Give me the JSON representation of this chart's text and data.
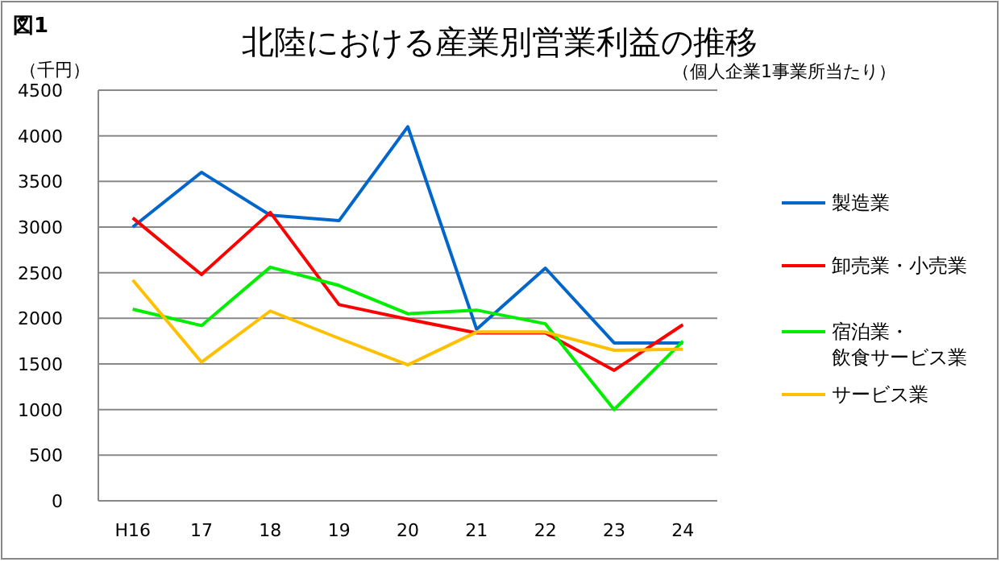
{
  "chart_data": {
    "type": "line",
    "title": "北陸における産業別営業利益の推移",
    "subtitle": "（個人企業1事業所当たり）",
    "ylabel": "（千円）",
    "annotations": [
      "図1"
    ],
    "categories": [
      "H16",
      "17",
      "18",
      "19",
      "20",
      "21",
      "22",
      "23",
      "24"
    ],
    "ylim": [
      0,
      4500
    ],
    "yticks": [
      0,
      500,
      1000,
      1500,
      2000,
      2500,
      3000,
      3500,
      4000,
      4500
    ],
    "grid": "y",
    "legend": "right",
    "marker": "none",
    "line_style": "solid",
    "series": [
      {
        "name": "製造業",
        "color": "#0066cc",
        "values": [
          3000,
          3600,
          3130,
          3070,
          4100,
          1880,
          2550,
          1730,
          1730
        ]
      },
      {
        "name": "卸売業・小売業",
        "color": "#ff0000",
        "values": [
          3100,
          2480,
          3160,
          2150,
          1990,
          1840,
          1840,
          1430,
          1930
        ]
      },
      {
        "name": "宿泊業・飲食サービス業",
        "color": "#00ee00",
        "values": [
          2100,
          1920,
          2560,
          2360,
          2050,
          2090,
          1940,
          1000,
          1750
        ]
      },
      {
        "name": "サービス業",
        "color": "#ffc000",
        "values": [
          2420,
          1520,
          2080,
          1780,
          1490,
          1850,
          1850,
          1650,
          1660
        ]
      }
    ]
  }
}
